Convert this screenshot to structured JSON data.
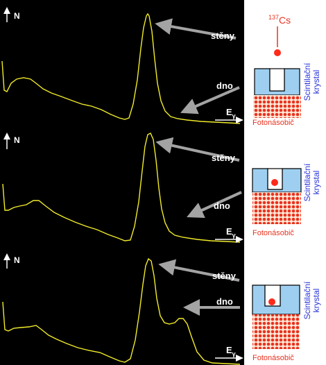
{
  "colors": {
    "background": "#000000",
    "spectrum": "#f2ec2a",
    "arrow": "#a3a3a3",
    "axis": "#ffffff",
    "crystal": "#9ecff0",
    "crystal_outline": "#000000",
    "crystal_label": "#2a35d8",
    "photomultiplier": "#ffe7d6",
    "photomultiplier_dots": "#e8321f",
    "source": "#ff2a1a",
    "source_label": "#e8321f",
    "photomultiplier_label": "#e8321f",
    "arrow_label": "#ffffff"
  },
  "source_label": {
    "sup": "137",
    "text": "Cs"
  },
  "panels": [
    {
      "y_axis_label": "N",
      "x_axis_label": {
        "base": "E",
        "sub": "γ"
      },
      "walls_label": "stěny",
      "bottom_label": "dno",
      "crystal_label": [
        "Scintilační",
        "krystal"
      ],
      "photomultiplier_label": "Fotonásobič",
      "source_depth": "shallow"
    },
    {
      "y_axis_label": "N",
      "x_axis_label": {
        "base": "E",
        "sub": "γ"
      },
      "walls_label": "stěny",
      "bottom_label": "dno",
      "crystal_label": [
        "Scintilační",
        "krystal"
      ],
      "photomultiplier_label": "Fotonásobič",
      "source_depth": "middle"
    },
    {
      "y_axis_label": "N",
      "x_axis_label": {
        "base": "E",
        "sub": "γ"
      },
      "walls_label": "stěny",
      "bottom_label": "dno",
      "crystal_label": [
        "Scintilační",
        "krystal"
      ],
      "photomultiplier_label": "Fotonásobič",
      "source_depth": "deep"
    }
  ]
}
